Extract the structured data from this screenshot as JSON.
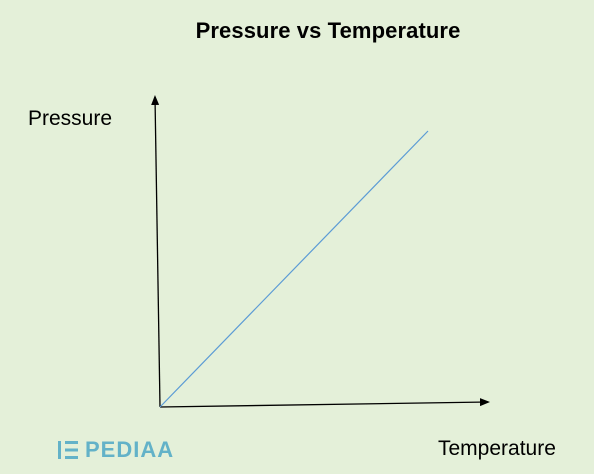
{
  "chart_data": {
    "type": "line",
    "title": "Pressure vs Temperature",
    "xlabel": "Temperature",
    "ylabel": "Pressure",
    "series": [
      {
        "x": [
          0,
          1
        ],
        "y": [
          0,
          1
        ]
      }
    ],
    "xlim": [
      0,
      1
    ],
    "ylim": [
      0,
      1
    ],
    "grid": false,
    "line_color": "#5b9bd5",
    "axis_color": "#000000"
  },
  "watermark": {
    "icon": "pediaa-logo-icon",
    "text": "PEDIAA",
    "color": "#63b2c8"
  }
}
